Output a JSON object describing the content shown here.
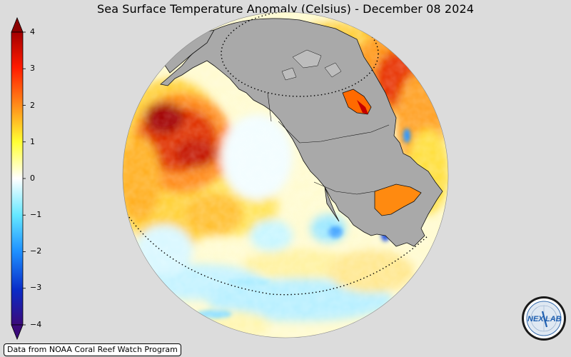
{
  "title": "Sea Surface Temperature Anomaly (Celsius) - December 08 2024",
  "colorbar": {
    "ticks": [
      "4",
      "3",
      "2",
      "1",
      "0",
      "−1",
      "−2",
      "−3",
      "−4"
    ],
    "min": -4,
    "max": 4,
    "colors": [
      "#3b0a7a",
      "#0a2cc8",
      "#1e90ff",
      "#7fe6ff",
      "#ffffff",
      "#fff44a",
      "#ffa91f",
      "#ff4a00",
      "#a30000"
    ]
  },
  "map": {
    "land_color": "#a9a9a9",
    "background_color": "#dcdcdc"
  },
  "credit": "Data from NOAA Coral Reef Watch Program",
  "logo": {
    "text_left": "NEX",
    "text_right": "LAB"
  }
}
